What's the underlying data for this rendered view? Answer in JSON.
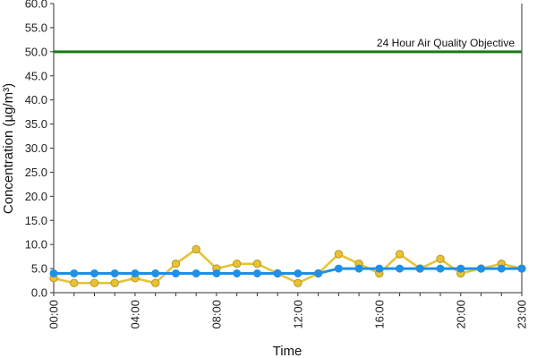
{
  "chart_data": {
    "type": "line",
    "title": "",
    "xlabel": "Time",
    "ylabel": "Concentration (µg/m³)",
    "ylim": [
      0,
      60
    ],
    "y_ticks": [
      "0.0",
      "5.0",
      "10.0",
      "15.0",
      "20.0",
      "25.0",
      "30.0",
      "35.0",
      "40.0",
      "45.0",
      "50.0",
      "55.0",
      "60.0"
    ],
    "x_tick_labels": [
      "00:00",
      "04:00",
      "08:00",
      "12:00",
      "16:00",
      "20:00",
      "23:00"
    ],
    "x_tick_hours": [
      0,
      4,
      8,
      12,
      16,
      20,
      23
    ],
    "x": [
      0,
      1,
      2,
      3,
      4,
      5,
      6,
      7,
      8,
      9,
      10,
      11,
      12,
      13,
      14,
      15,
      16,
      17,
      18,
      19,
      20,
      21,
      22,
      23
    ],
    "series": [
      {
        "color": "#E8C232",
        "marker_fill": "#E8C232",
        "values": [
          3,
          2,
          2,
          2,
          3,
          2,
          6,
          9,
          5,
          6,
          6,
          4,
          2,
          4,
          8,
          6,
          4,
          8,
          5,
          7,
          4,
          5,
          6,
          5
        ]
      },
      {
        "color": "#1E90E8",
        "marker_fill": "#1E90E8",
        "values": [
          4,
          4,
          4,
          4,
          4,
          4,
          4,
          4,
          4,
          4,
          4,
          4,
          4,
          4,
          5,
          5,
          5,
          5,
          5,
          5,
          5,
          5,
          5,
          5
        ]
      }
    ],
    "reference_line": {
      "value": 50,
      "label": "24 Hour Air Quality Objective",
      "color": "#1A7A1A"
    },
    "grid": false,
    "legend": "none"
  }
}
